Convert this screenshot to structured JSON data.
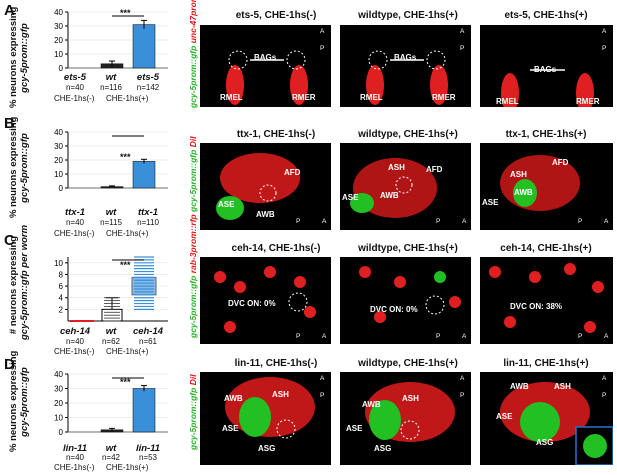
{
  "panels": [
    {
      "letter": "A",
      "ylabel": "% neurons expressing",
      "ylabel_reporter": "gcy-5prom::gfp",
      "ticks": [
        "0",
        "10",
        "20",
        "30",
        "40"
      ],
      "significance": "***",
      "categories": [
        "ets-5",
        "wt",
        "ets-5"
      ],
      "n": [
        "n=40",
        "n=116",
        "n=142"
      ],
      "che_left": "CHE-1hs(-)",
      "che_right": "CHE-1hs(+)",
      "reporter_green": "gcy-5prom::gfp",
      "reporter_red": "unc-47prom::mCherry",
      "image_titles": [
        "ets-5, CHE-1hs(-)",
        "wildtype, CHE-1hs(+)",
        "ets-5, CHE-1hs(+)"
      ],
      "image_labels": [
        [
          "BAGs",
          "RMEL",
          "RMER"
        ],
        [
          "BAGs",
          "RMEL",
          "RMER"
        ],
        [
          "BAGs",
          "RMEL",
          "RMER"
        ]
      ]
    },
    {
      "letter": "B",
      "ylabel": "% neurons expressing",
      "ylabel_reporter": "gcy-5prom::gfp",
      "ticks": [
        "0",
        "10",
        "20",
        "30",
        "40"
      ],
      "significance": "***",
      "categories": [
        "ttx-1",
        "wt",
        "ttx-1"
      ],
      "n": [
        "n=40",
        "n=115",
        "n=110"
      ],
      "che_left": "CHE-1hs(-)",
      "che_right": "CHE-1hs(+)",
      "reporter_green": "gcy-5prom::gfp",
      "reporter_red": "DiI",
      "image_titles": [
        "ttx-1, CHE-1hs(-)",
        "wildtype, CHE-1hs(+)",
        "ttx-1, CHE-1hs(+)"
      ],
      "image_labels": [
        [
          "ASE",
          "AWB",
          "AFD"
        ],
        [
          "ASH",
          "AFD",
          "AWB",
          "ASE"
        ],
        [
          "AFD",
          "ASH",
          "AWB",
          "ASE"
        ]
      ]
    },
    {
      "letter": "C",
      "ylabel": "# neurons expressing",
      "ylabel_reporter": "gcy-5prom::gfp per worm",
      "ticks": [
        "2",
        "4",
        "6",
        "8",
        "10"
      ],
      "significance": "***",
      "categories": [
        "ceh-14",
        "wt",
        "ceh-14"
      ],
      "n": [
        "n=40",
        "n=62",
        "n=61"
      ],
      "che_left": "CHE-1hs(-)",
      "che_right": "CHE-1hs(+)",
      "reporter_green": "gcy-5prom::gfp",
      "reporter_red": "rab-3prom::rfp",
      "image_titles": [
        "ceh-14, CHE-1hs(-)",
        "wildtype, CHE-1hs(+)",
        "ceh-14, CHE-1hs(+)"
      ],
      "image_labels": [
        [
          "DVC ON: 0%"
        ],
        [
          "DVC ON: 0%"
        ],
        [
          "DVC ON: 38%"
        ]
      ]
    },
    {
      "letter": "D",
      "ylabel": "% neurons expressing",
      "ylabel_reporter": "gcy-5prom::gfp",
      "ticks": [
        "0",
        "10",
        "20",
        "30",
        "40"
      ],
      "significance": "***",
      "categories": [
        "lin-11",
        "wt",
        "lin-11"
      ],
      "n": [
        "n=40",
        "n=42",
        "n=53"
      ],
      "che_left": "CHE-1hs(-)",
      "che_right": "CHE-1hs(+)",
      "reporter_green": "gcy-5prom::gfp",
      "reporter_red": "DiI",
      "image_titles": [
        "lin-11, CHE-1hs(-)",
        "wildtype, CHE-1hs(+)",
        "lin-11, CHE-1hs(+)"
      ],
      "image_labels": [
        [
          "AWB",
          "ASH",
          "ASE",
          "ASG"
        ],
        [
          "AWB",
          "ASH",
          "ASE",
          "ASG"
        ],
        [
          "AWB",
          "ASH",
          "ASE",
          "ASG"
        ]
      ]
    }
  ],
  "orientation": {
    "a": "A",
    "p": "P"
  },
  "colors": {
    "bar_blue": "#3a8fd9",
    "bar_black": "#222222",
    "gfp": "#22c022",
    "red": "#e02020"
  },
  "chart_data": [
    {
      "type": "bar",
      "categories": [
        "ets-5 CHE-1hs(-)",
        "wt CHE-1hs(+)",
        "ets-5 CHE-1hs(+)"
      ],
      "values": [
        0,
        3,
        31
      ],
      "errors": [
        0,
        2,
        3
      ],
      "ylim": [
        0,
        40
      ],
      "ylabel": "% neurons expressing gcy-5prom::gfp"
    },
    {
      "type": "bar",
      "categories": [
        "ttx-1 CHE-1hs(-)",
        "wt CHE-1hs(+)",
        "ttx-1 CHE-1hs(+)"
      ],
      "values": [
        0,
        1,
        19
      ],
      "errors": [
        0,
        0.5,
        1.5
      ],
      "ylim": [
        0,
        40
      ],
      "ylabel": "% neurons expressing gcy-5prom::gfp"
    },
    {
      "type": "scatter",
      "categories": [
        "ceh-14 CHE-1hs(-)",
        "wt CHE-1hs(+)",
        "ceh-14 CHE-1hs(+)"
      ],
      "medians": [
        0,
        1,
        6
      ],
      "ranges": [
        [
          0,
          0
        ],
        [
          0,
          4
        ],
        [
          2,
          11
        ]
      ],
      "ylim": [
        0,
        11
      ],
      "ylabel": "# neurons expressing gcy-5prom::gfp per worm"
    },
    {
      "type": "bar",
      "categories": [
        "lin-11 CHE-1hs(-)",
        "wt CHE-1hs(+)",
        "lin-11 CHE-1hs(+)"
      ],
      "values": [
        0,
        1.5,
        30
      ],
      "errors": [
        0,
        1,
        2
      ],
      "ylim": [
        0,
        40
      ],
      "ylabel": "% neurons expressing gcy-5prom::gfp"
    }
  ]
}
